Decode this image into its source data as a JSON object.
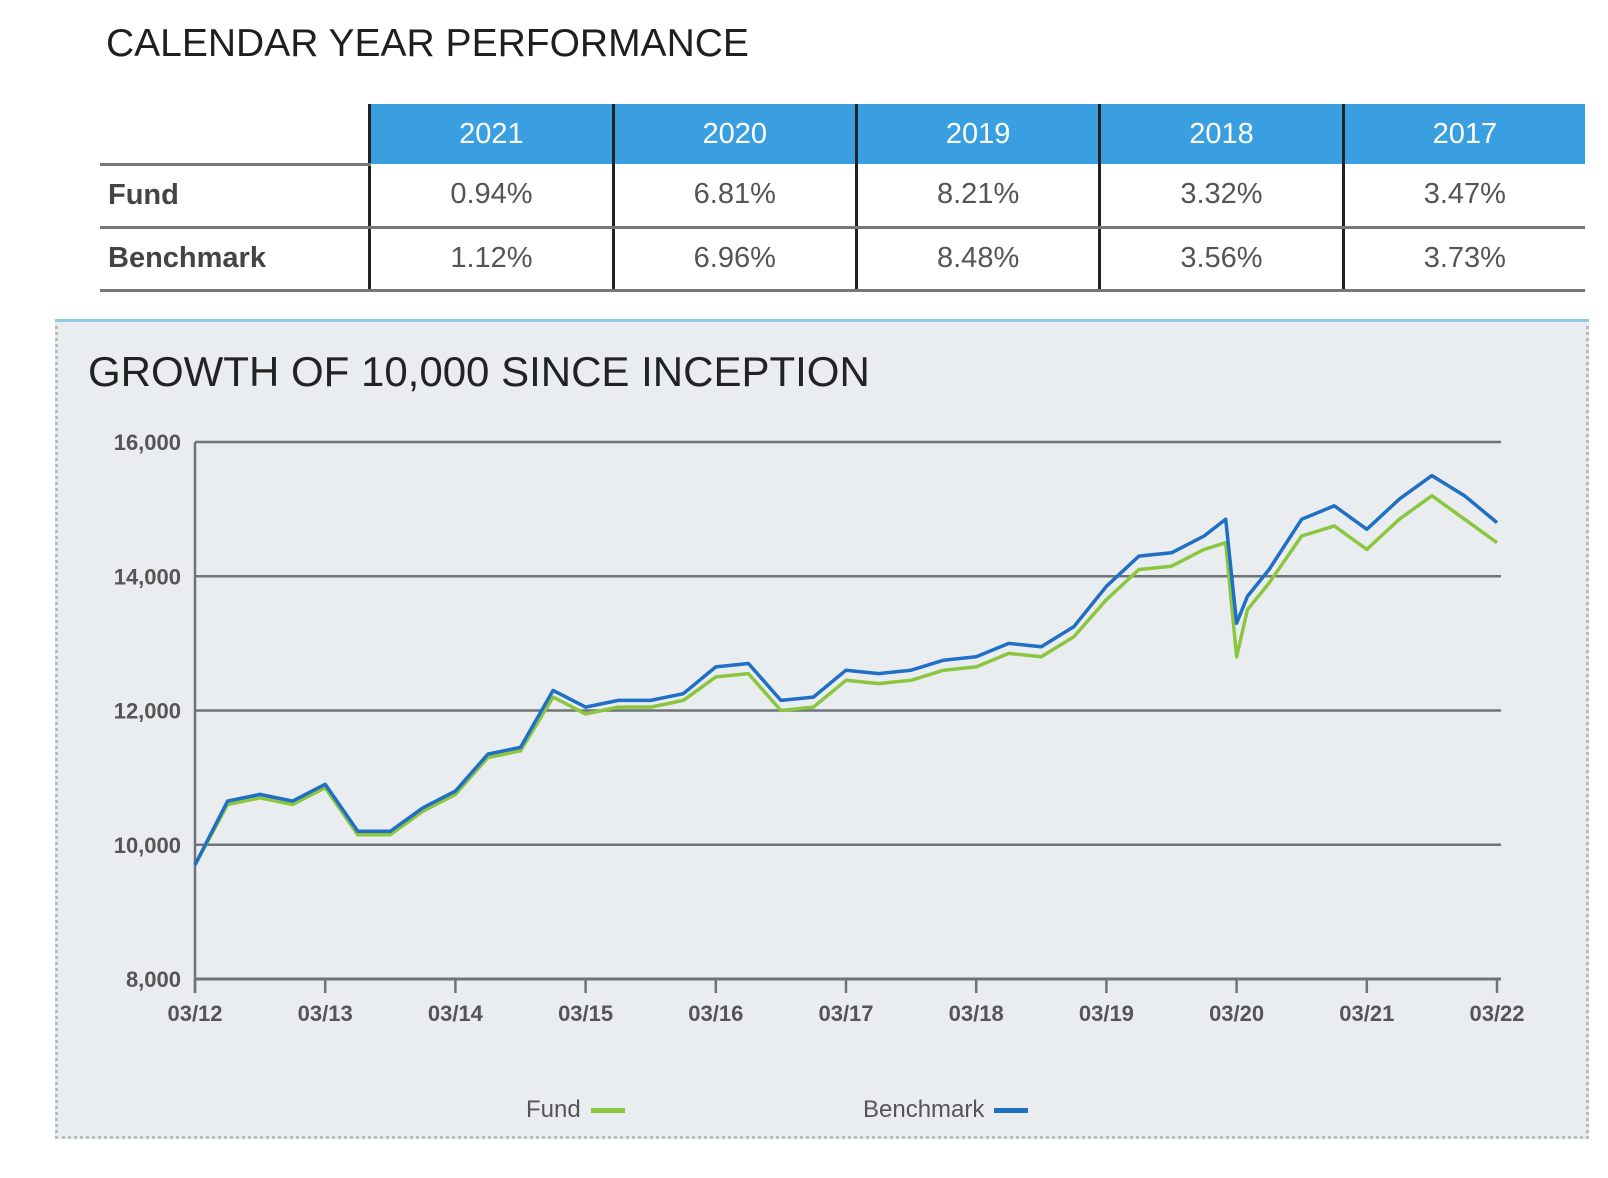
{
  "performance": {
    "title": "CALENDAR YEAR PERFORMANCE",
    "years": [
      "2021",
      "2020",
      "2019",
      "2018",
      "2017"
    ],
    "rows": [
      {
        "label": "Fund",
        "values": [
          "0.94%",
          "6.81%",
          "8.21%",
          "3.32%",
          "3.47%"
        ]
      },
      {
        "label": "Benchmark",
        "values": [
          "1.12%",
          "6.96%",
          "8.48%",
          "3.56%",
          "3.73%"
        ]
      }
    ],
    "header_color": "#3a9fe0"
  },
  "chart_data": {
    "type": "line",
    "title": "GROWTH OF 10,000 SINCE INCEPTION",
    "xlabel": "",
    "ylabel": "",
    "ylim": [
      8000,
      16000
    ],
    "y_ticks": [
      8000,
      10000,
      12000,
      14000,
      16000
    ],
    "y_tick_labels": [
      "8,000",
      "10,000",
      "12,000",
      "14,000",
      "16,000"
    ],
    "x_tick_labels": [
      "03/12",
      "03/13",
      "03/14",
      "03/15",
      "03/16",
      "03/17",
      "03/18",
      "03/19",
      "03/20",
      "03/21",
      "03/22"
    ],
    "grid": true,
    "legend_position": "bottom",
    "x": [
      "03/12",
      "06/12",
      "09/12",
      "12/12",
      "03/13",
      "06/13",
      "09/13",
      "12/13",
      "03/14",
      "06/14",
      "09/14",
      "12/14",
      "03/15",
      "06/15",
      "09/15",
      "12/15",
      "03/16",
      "06/16",
      "09/16",
      "12/16",
      "03/17",
      "06/17",
      "09/17",
      "12/17",
      "03/18",
      "06/18",
      "09/18",
      "12/18",
      "03/19",
      "06/19",
      "09/19",
      "12/19",
      "02/20",
      "03/20",
      "04/20",
      "06/20",
      "09/20",
      "12/20",
      "03/21",
      "06/21",
      "09/21",
      "12/21",
      "03/22"
    ],
    "series": [
      {
        "name": "Fund",
        "color": "#8cc63f",
        "values": [
          9700,
          10600,
          10700,
          10600,
          10850,
          10150,
          10150,
          10500,
          10750,
          11300,
          11400,
          12200,
          11950,
          12050,
          12050,
          12150,
          12500,
          12550,
          12000,
          12050,
          12450,
          12400,
          12450,
          12600,
          12650,
          12850,
          12800,
          13100,
          13650,
          14100,
          14150,
          14400,
          14500,
          12800,
          13500,
          13900,
          14600,
          14750,
          14400,
          14850,
          15200,
          14850,
          14500
        ]
      },
      {
        "name": "Benchmark",
        "color": "#1f6fc5",
        "values": [
          9700,
          10650,
          10750,
          10650,
          10900,
          10200,
          10200,
          10550,
          10800,
          11350,
          11450,
          12300,
          12050,
          12150,
          12150,
          12250,
          12650,
          12700,
          12150,
          12200,
          12600,
          12550,
          12600,
          12750,
          12800,
          13000,
          12950,
          13250,
          13850,
          14300,
          14350,
          14600,
          14850,
          13300,
          13700,
          14100,
          14850,
          15050,
          14700,
          15150,
          15500,
          15200,
          14800
        ]
      }
    ]
  }
}
